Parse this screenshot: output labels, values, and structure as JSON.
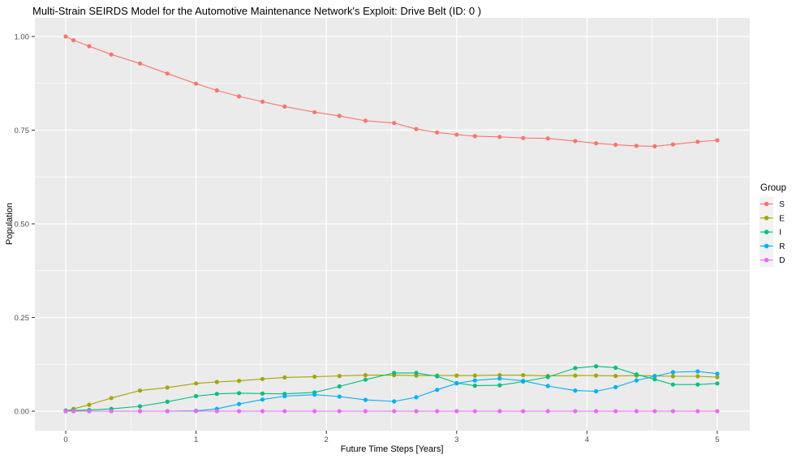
{
  "page": {
    "background_color": "#ffffff",
    "panel_background_color": "#EBEBEB",
    "gridline_color": "#ffffff",
    "tick_label_color": "#4d4d4d"
  },
  "chart_data": {
    "type": "line",
    "title": "Multi-Strain SEIRDS Model for the Automotive Maintenance Network's Exploit: Drive Belt (ID: 0 )",
    "xlabel": "Future Time Steps [Years]",
    "ylabel": "Population",
    "xlim": [
      0,
      5
    ],
    "ylim": [
      0,
      1
    ],
    "x_tick_values": [
      0,
      1,
      2,
      3,
      4,
      5
    ],
    "x_tick_labels": [
      "0",
      "1",
      "2",
      "3",
      "4",
      "5"
    ],
    "y_tick_values": [
      0.0,
      0.25,
      0.5,
      0.75,
      1.0
    ],
    "y_tick_labels": [
      "0.00",
      "0.25",
      "0.50",
      "0.75",
      "1.00"
    ],
    "grid": "major-and-minor",
    "x_minor_tick_values": [
      0.5,
      1.5,
      2.5,
      3.5,
      4.5
    ],
    "y_minor_tick_values": [
      0.125,
      0.375,
      0.625,
      0.875
    ],
    "marker": "point",
    "legend": {
      "title": "Group",
      "position": "right"
    },
    "x": [
      0,
      0.06,
      0.18,
      0.35,
      0.57,
      0.78,
      1.0,
      1.16,
      1.33,
      1.51,
      1.68,
      1.91,
      2.1,
      2.3,
      2.52,
      2.69,
      2.85,
      3.0,
      3.14,
      3.33,
      3.51,
      3.7,
      3.91,
      4.07,
      4.22,
      4.38,
      4.52,
      4.66,
      4.85,
      5.0
    ],
    "series": [
      {
        "name": "S",
        "color": "#F8766D",
        "values": [
          1.0,
          0.99,
          0.974,
          0.952,
          0.928,
          0.901,
          0.874,
          0.856,
          0.84,
          0.826,
          0.813,
          0.798,
          0.788,
          0.775,
          0.769,
          0.753,
          0.744,
          0.738,
          0.734,
          0.732,
          0.729,
          0.728,
          0.721,
          0.715,
          0.711,
          0.708,
          0.707,
          0.712,
          0.719,
          0.723
        ]
      },
      {
        "name": "E",
        "color": "#A3A500",
        "values": [
          0.0,
          0.006,
          0.017,
          0.035,
          0.055,
          0.063,
          0.074,
          0.078,
          0.081,
          0.086,
          0.09,
          0.092,
          0.094,
          0.096,
          0.096,
          0.095,
          0.095,
          0.095,
          0.095,
          0.096,
          0.096,
          0.094,
          0.095,
          0.095,
          0.094,
          0.095,
          0.094,
          0.093,
          0.093,
          0.091
        ]
      },
      {
        "name": "I",
        "color": "#00BF7D",
        "values": [
          0.002,
          0.002,
          0.003,
          0.006,
          0.013,
          0.025,
          0.04,
          0.046,
          0.048,
          0.047,
          0.046,
          0.05,
          0.066,
          0.084,
          0.102,
          0.102,
          0.093,
          0.075,
          0.068,
          0.069,
          0.079,
          0.091,
          0.115,
          0.12,
          0.116,
          0.098,
          0.085,
          0.071,
          0.071,
          0.074
        ]
      },
      {
        "name": "R",
        "color": "#00B0F6",
        "values": [
          0.0,
          0.0,
          0.0,
          0.0,
          0.0,
          0.0,
          0.001,
          0.006,
          0.019,
          0.031,
          0.04,
          0.044,
          0.039,
          0.03,
          0.026,
          0.037,
          0.057,
          0.074,
          0.082,
          0.087,
          0.081,
          0.067,
          0.055,
          0.053,
          0.064,
          0.082,
          0.093,
          0.104,
          0.106,
          0.1
        ]
      },
      {
        "name": "D",
        "color": "#E76BF3",
        "values": [
          0.0,
          0.0,
          0.0,
          0.0,
          0.0,
          0.0,
          0.0,
          0.0,
          0.0,
          0.0,
          0.0,
          0.0,
          0.0,
          0.0,
          0.0,
          0.0,
          0.0,
          0.0,
          0.0,
          0.0,
          0.0,
          0.0,
          0.0,
          0.0,
          0.0,
          0.0,
          0.0,
          0.0,
          0.0,
          0.0
        ]
      }
    ]
  }
}
